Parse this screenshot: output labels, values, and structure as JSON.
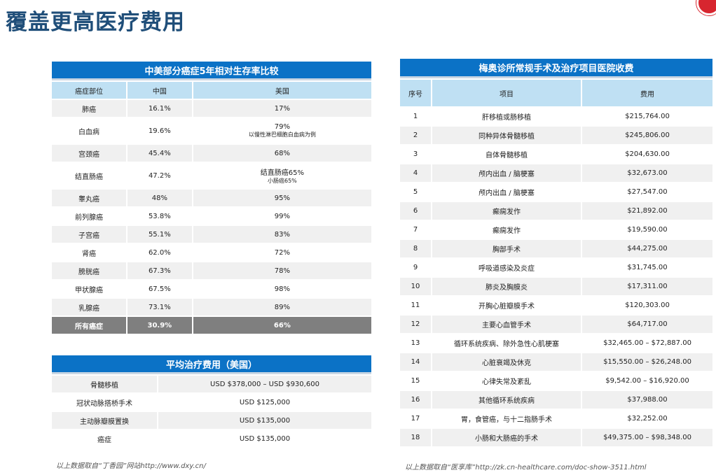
{
  "page_title": "覆盖更高医疗费用",
  "survival_table": {
    "title": "中美部分癌症5年相对生存率比较",
    "headers": [
      "癌症部位",
      "中国",
      "美国"
    ],
    "rows": [
      {
        "site": "肺癌",
        "china": "16.1%",
        "us": "17%"
      },
      {
        "site": "白血病",
        "china": "19.6%",
        "us": "79%",
        "us_note": "以慢性淋巴细胞白血病为例"
      },
      {
        "site": "宫颈癌",
        "china": "45.4%",
        "us": "68%"
      },
      {
        "site": "结直肠癌",
        "china": "47.2%",
        "us": "结直肠癌65%",
        "us_note": "小肠癌65%"
      },
      {
        "site": "睾丸癌",
        "china": "48%",
        "us": "95%"
      },
      {
        "site": "前列腺癌",
        "china": "53.8%",
        "us": "99%"
      },
      {
        "site": "子宫癌",
        "china": "55.1%",
        "us": "83%"
      },
      {
        "site": "肾癌",
        "china": "62.0%",
        "us": "72%"
      },
      {
        "site": "膀胱癌",
        "china": "67.3%",
        "us": "78%"
      },
      {
        "site": "甲状腺癌",
        "china": "67.5%",
        "us": "98%"
      },
      {
        "site": "乳腺癌",
        "china": "73.1%",
        "us": "89%"
      }
    ],
    "total": {
      "site": "所有癌症",
      "china": "30.9%",
      "us": "66%"
    }
  },
  "cost_table": {
    "title": "平均治疗费用（美国）",
    "rows": [
      {
        "item": "骨髓移植",
        "cost": "USD $378,000 – USD $930,600"
      },
      {
        "item": "冠状动脉搭桥手术",
        "cost": "USD $125,000"
      },
      {
        "item": "主动脉瓣膜置换",
        "cost": "USD $135,000"
      },
      {
        "item": "癌症",
        "cost": "USD $135,000"
      }
    ]
  },
  "mayo_table": {
    "title": "梅奥诊所常规手术及治疗项目医院收费",
    "headers": [
      "序号",
      "项目",
      "费用"
    ],
    "rows": [
      {
        "no": "1",
        "item": "肝移植或肠移植",
        "fee": "$215,764.00"
      },
      {
        "no": "2",
        "item": "同种异体骨髓移植",
        "fee": "$245,806.00"
      },
      {
        "no": "3",
        "item": "自体骨髓移植",
        "fee": "$204,630.00"
      },
      {
        "no": "4",
        "item": "颅内出血 / 脑梗塞",
        "fee": "$32,673.00"
      },
      {
        "no": "5",
        "item": "颅内出血 / 脑梗塞",
        "fee": "$27,547.00"
      },
      {
        "no": "6",
        "item": "癫痫发作",
        "fee": "$21,892.00"
      },
      {
        "no": "7",
        "item": "癫痫发作",
        "fee": "$19,590.00"
      },
      {
        "no": "8",
        "item": "胸部手术",
        "fee": "$44,275.00"
      },
      {
        "no": "9",
        "item": "呼吸道感染及炎症",
        "fee": "$31,745.00"
      },
      {
        "no": "10",
        "item": "肺炎及胸膜炎",
        "fee": "$17,311.00"
      },
      {
        "no": "11",
        "item": "开胸心脏瓣膜手术",
        "fee": "$120,303.00"
      },
      {
        "no": "12",
        "item": "主要心血管手术",
        "fee": "$64,717.00"
      },
      {
        "no": "13",
        "item": "循环系统疾病、除外急性心肌梗塞",
        "fee": "$32,465.00 – $72,887.00"
      },
      {
        "no": "14",
        "item": "心脏衰竭及休克",
        "fee": "$15,550.00 – $26,248.00"
      },
      {
        "no": "15",
        "item": "心律失常及紊乱",
        "fee": "$9,542.00 – $16,920.00"
      },
      {
        "no": "16",
        "item": "其他循环系统疾病",
        "fee": "$37,988.00"
      },
      {
        "no": "17",
        "item": "胃，食管癌，与十二指肠手术",
        "fee": "$32,252.00"
      },
      {
        "no": "18",
        "item": "小肠和大肠癌的手术",
        "fee": "$49,375.00 – $98,348.00"
      }
    ]
  },
  "footnotes": {
    "left": "以上数据取自“丁香园”网站http://www.dxy.cn/",
    "right": "以上数据取自“医享库”http://zk.cn-healthcare.com/doc-show-3511.html"
  }
}
